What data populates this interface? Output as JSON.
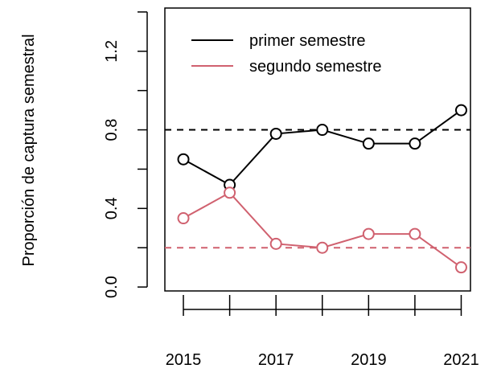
{
  "chart_data": {
    "type": "line",
    "ylabel": "Proporción de captura semestral",
    "xlabel": "",
    "title": "",
    "x": [
      2015,
      2016,
      2017,
      2018,
      2019,
      2020,
      2021
    ],
    "x_tick_labels": [
      "2015",
      "2017",
      "2019",
      "2021"
    ],
    "x_tick_label_values": [
      2015,
      2017,
      2019,
      2021
    ],
    "y_ticks": [
      0.0,
      0.2,
      0.4,
      0.6,
      0.8,
      1.0,
      1.2,
      1.4
    ],
    "y_tick_labels": [
      "0.0",
      "0.4",
      "0.8",
      "1.2"
    ],
    "y_tick_label_values": [
      0.0,
      0.4,
      0.8,
      1.2
    ],
    "xlim": [
      2014.6,
      2021.2
    ],
    "ylim": [
      -0.02,
      1.42
    ],
    "legend_position": "top",
    "series": [
      {
        "name": "primer semestre",
        "color": "#000000",
        "values": [
          0.65,
          0.52,
          0.78,
          0.8,
          0.73,
          0.73,
          0.9
        ],
        "reference_line": 0.8
      },
      {
        "name": "segundo semestre",
        "color": "#D0616F",
        "values": [
          0.35,
          0.48,
          0.22,
          0.2,
          0.27,
          0.27,
          0.1
        ],
        "reference_line": 0.2
      }
    ]
  }
}
